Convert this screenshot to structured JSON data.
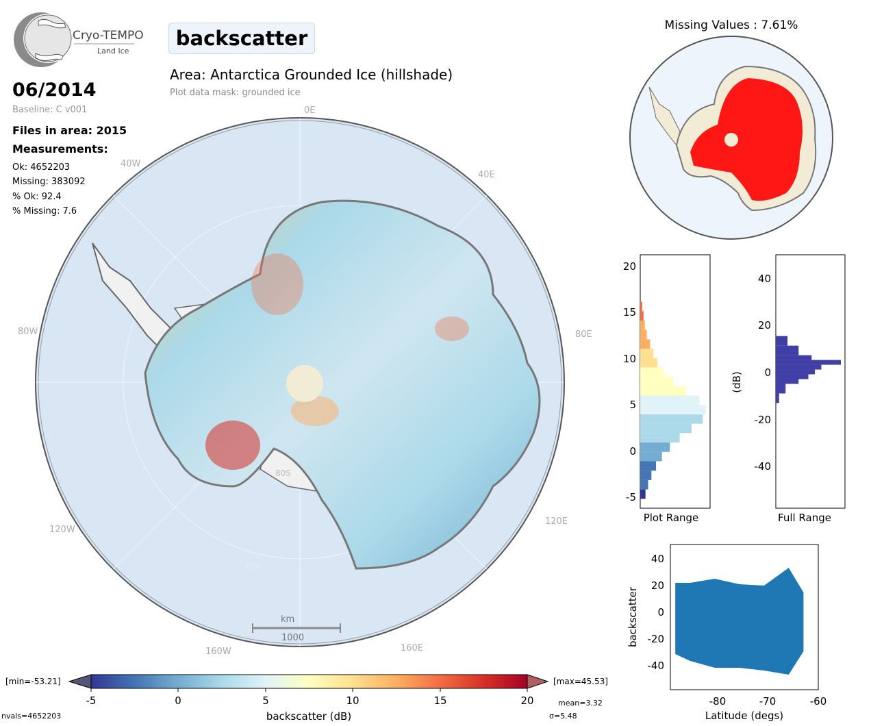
{
  "logo": {
    "name": "Cryo-TEMPO",
    "subtitle": "Land Ice"
  },
  "title": "backscatter",
  "date": "06/2014",
  "baseline": "Baseline: C v001",
  "files": "Files in area: 2015",
  "measurements_heading": "Measurements:",
  "stats": {
    "ok": "Ok: 4652203",
    "missing": "Missing: 383092",
    "pct_ok": "% Ok: 92.4",
    "pct_missing": "% Missing: 7.6"
  },
  "area": "Area: Antarctica Grounded Ice (hillshade)",
  "mask": "Plot data mask: grounded ice",
  "graticule": {
    "lon_labels": [
      "0E",
      "40E",
      "80E",
      "120E",
      "160E",
      "160W",
      "120W",
      "80W",
      "40W"
    ],
    "lat_labels": [
      "80S",
      "70S"
    ]
  },
  "scalebar": {
    "unit": "km",
    "value": "1000"
  },
  "missing_map_title": "Missing Values : 7.61%",
  "colors": {
    "colormap": [
      "#313695",
      "#4575b4",
      "#74add1",
      "#abd9e9",
      "#e0f3f8",
      "#ffffbf",
      "#fee090",
      "#fdae61",
      "#f46d43",
      "#d73027",
      "#a50026"
    ],
    "missing": "#ff0000",
    "scatter": "#1f77b4",
    "fullhist": "#3f3fa6"
  },
  "colorbar": {
    "min_label": "[min=-53.21]",
    "max_label": "[max=45.53]",
    "ticks": [
      "-5",
      "0",
      "5",
      "10",
      "15",
      "20"
    ],
    "label": "backscatter (dB)",
    "range": [
      -5,
      20
    ]
  },
  "footer": {
    "nvals": "nvals=4652203",
    "mean": "mean=3.32",
    "sigma": "σ=5.48"
  },
  "chart_data": [
    {
      "type": "bar",
      "title": "",
      "xlabel": "Plot Range",
      "ylabel": "",
      "ylim": [
        -6,
        21
      ],
      "yticks": [
        "20",
        "15",
        "10",
        "5",
        "0",
        "-5"
      ],
      "bins": [
        -5,
        -4,
        -3,
        -2,
        -1,
        0,
        1,
        2,
        3,
        4,
        5,
        6,
        7,
        8,
        9,
        10,
        11,
        12,
        13,
        14,
        15,
        16
      ],
      "values": [
        0.08,
        0.12,
        0.17,
        0.24,
        0.33,
        0.45,
        0.6,
        0.78,
        0.95,
        1.0,
        0.9,
        0.7,
        0.5,
        0.36,
        0.26,
        0.2,
        0.15,
        0.1,
        0.07,
        0.05,
        0.03,
        0.01
      ]
    },
    {
      "type": "bar",
      "title": "",
      "xlabel": "Full Range",
      "ylabel": "(dB)",
      "ylim": [
        -56,
        50
      ],
      "yticks": [
        "40",
        "20",
        "0",
        "-20",
        "-40"
      ],
      "bins": [
        -12,
        -8,
        -4,
        -2,
        0,
        2,
        4,
        6,
        8,
        12,
        16
      ],
      "values": [
        0.05,
        0.15,
        0.35,
        0.5,
        0.6,
        0.7,
        1.0,
        0.55,
        0.35,
        0.18,
        0.06
      ]
    },
    {
      "type": "scatter",
      "title": "",
      "xlabel": "Latitude (degs)",
      "ylabel": "backscatter",
      "xlim": [
        -89,
        -59
      ],
      "ylim": [
        -56,
        50
      ],
      "xticks": [
        "-80",
        "-70",
        "-60"
      ],
      "yticks": [
        "40",
        "20",
        "0",
        "-20",
        "-40"
      ],
      "envelope": [
        {
          "x": -88,
          "ymin": -30,
          "ymax": 22
        },
        {
          "x": -85,
          "ymin": -35,
          "ymax": 22
        },
        {
          "x": -80,
          "ymin": -40,
          "ymax": 25
        },
        {
          "x": -75,
          "ymin": -40,
          "ymax": 21
        },
        {
          "x": -70,
          "ymin": -42,
          "ymax": 20
        },
        {
          "x": -65,
          "ymin": -45,
          "ymax": 33
        },
        {
          "x": -62,
          "ymin": -28,
          "ymax": 15
        }
      ]
    }
  ]
}
